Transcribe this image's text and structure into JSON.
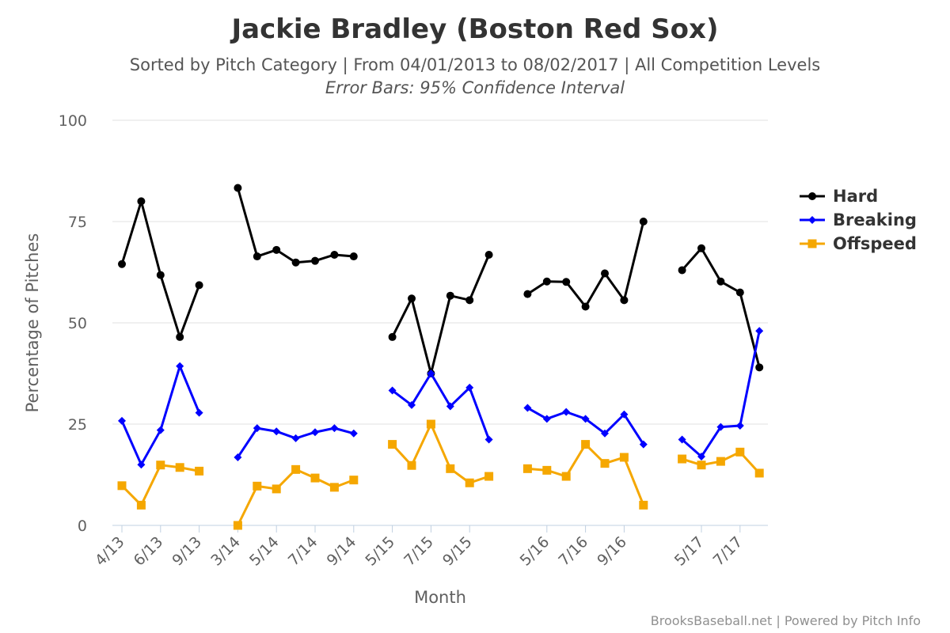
{
  "chart_data": {
    "type": "line",
    "title": "Jackie Bradley (Boston Red Sox)",
    "subtitle": "Sorted by Pitch Category | From 04/01/2013 to 08/02/2017 | All Competition Levels",
    "subtitle2": "Error Bars: 95% Confidence Interval",
    "xlabel": "Month",
    "ylabel": "Percentage of Pitches",
    "ylim": [
      0,
      100
    ],
    "yticks": [
      0,
      25,
      50,
      75,
      100
    ],
    "grid": true,
    "legend_position": "right",
    "credits": "BrooksBaseball.net | Powered by Pitch Info",
    "x": [
      "4/13",
      "5/13",
      "6/13",
      "8/13",
      "9/13",
      "3/14",
      "4/14",
      "5/14",
      "6/14",
      "7/14",
      "8/14",
      "9/14",
      "5/15",
      "6/15",
      "7/15",
      "8/15",
      "9/15",
      "10/15",
      "4/16",
      "5/16",
      "6/16",
      "7/16",
      "8/16",
      "9/16",
      "10/16",
      "4/17",
      "5/17",
      "6/17",
      "7/17",
      "8/17"
    ],
    "x_index": [
      0,
      1,
      2,
      3,
      4,
      6,
      7,
      8,
      9,
      10,
      11,
      12,
      14,
      15,
      16,
      17,
      18,
      19,
      21,
      22,
      23,
      24,
      25,
      26,
      27,
      29,
      30,
      31,
      32,
      33
    ],
    "segments": [
      [
        0,
        4
      ],
      [
        5,
        11
      ],
      [
        12,
        17
      ],
      [
        18,
        24
      ],
      [
        25,
        29
      ]
    ],
    "xtick_labels": [
      {
        "label": "4/13",
        "index": 0
      },
      {
        "label": "6/13",
        "index": 2
      },
      {
        "label": "9/13",
        "index": 4
      },
      {
        "label": "3/14",
        "index": 6
      },
      {
        "label": "5/14",
        "index": 8
      },
      {
        "label": "7/14",
        "index": 10
      },
      {
        "label": "9/14",
        "index": 12
      },
      {
        "label": "5/15",
        "index": 14
      },
      {
        "label": "7/15",
        "index": 16
      },
      {
        "label": "9/15",
        "index": 18
      },
      {
        "label": "5/16",
        "index": 22
      },
      {
        "label": "7/16",
        "index": 24
      },
      {
        "label": "9/16",
        "index": 26
      },
      {
        "label": "5/17",
        "index": 30
      },
      {
        "label": "7/17",
        "index": 32
      }
    ],
    "series": [
      {
        "name": "Hard",
        "color": "#000000",
        "marker": "circle",
        "values": [
          64.5,
          80,
          61.8,
          46.5,
          59.3,
          83.3,
          66.4,
          68,
          64.9,
          65.3,
          66.8,
          66.4,
          46.5,
          56,
          37.5,
          56.7,
          55.6,
          66.8,
          57.1,
          60.2,
          60.1,
          54,
          62.2,
          55.6,
          75,
          63,
          68.4,
          60.2,
          57.5,
          39
        ]
      },
      {
        "name": "Breaking",
        "color": "#0000ff",
        "marker": "diamond",
        "values": [
          25.8,
          15,
          23.5,
          39.3,
          27.8,
          16.8,
          24,
          23.2,
          21.5,
          23,
          24,
          22.7,
          33.3,
          29.7,
          37.5,
          29.4,
          34,
          21.2,
          29,
          26.3,
          28,
          26.3,
          22.7,
          27.4,
          20,
          21.2,
          17,
          24.3,
          24.6,
          48
        ]
      },
      {
        "name": "Offspeed",
        "color": "#f5a700",
        "marker": "square",
        "values": [
          9.8,
          5,
          14.9,
          14.3,
          13.4,
          0,
          9.7,
          9,
          13.8,
          11.7,
          9.4,
          11.2,
          20,
          14.8,
          25,
          14,
          10.5,
          12.1,
          14,
          13.6,
          12.1,
          20,
          15.3,
          16.8,
          5,
          16.4,
          14.9,
          15.8,
          18.1,
          12.9
        ]
      }
    ]
  }
}
